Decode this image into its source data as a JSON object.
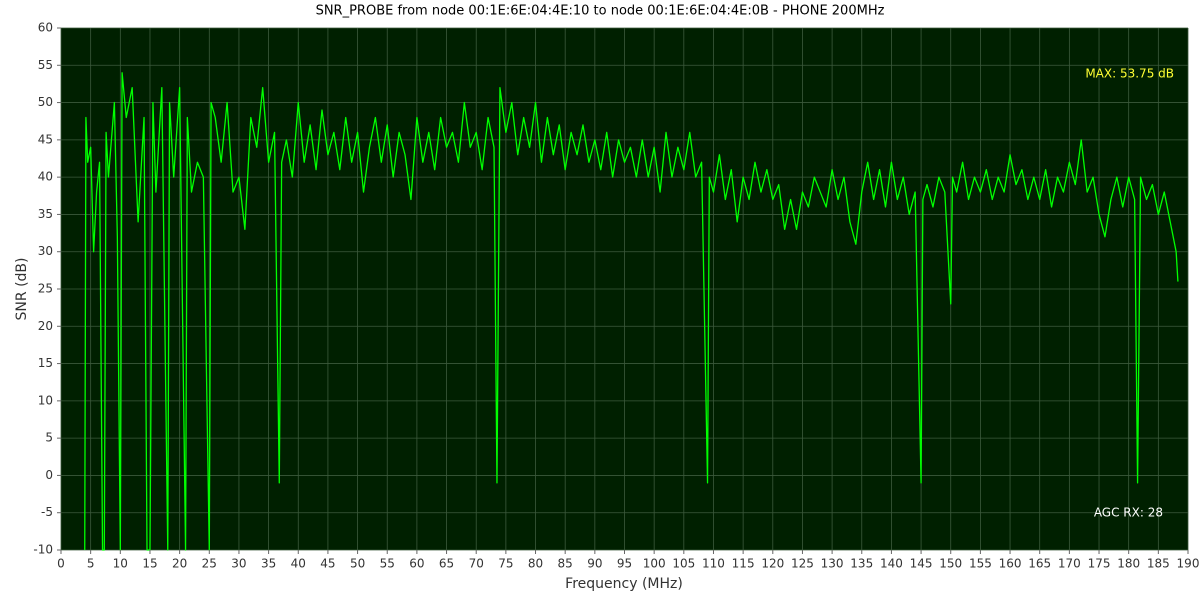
{
  "chart_data": {
    "type": "line",
    "title": "SNR_PROBE from node 00:1E:6E:04:4E:10 to node 00:1E:6E:04:4E:0B - PHONE 200MHz",
    "xlabel": "Frequency (MHz)",
    "ylabel": "SNR (dB)",
    "annotations": [
      "MAX: 53.75 dB",
      "AGC RX: 28"
    ],
    "grid": true,
    "xlim": [
      0,
      190
    ],
    "ylim": [
      -10,
      60
    ],
    "xticks": [
      0,
      5,
      10,
      15,
      20,
      25,
      30,
      35,
      40,
      45,
      50,
      55,
      60,
      65,
      70,
      75,
      80,
      85,
      90,
      95,
      100,
      105,
      110,
      115,
      120,
      125,
      130,
      135,
      140,
      145,
      150,
      155,
      160,
      165,
      170,
      175,
      180,
      185,
      190
    ],
    "yticks": [
      -10,
      -5,
      0,
      5,
      10,
      15,
      20,
      25,
      30,
      35,
      40,
      45,
      50,
      55,
      60
    ],
    "series": [
      {
        "name": "SNR",
        "color": "#00ff00",
        "x": [
          4,
          4.2,
          4.5,
          5,
          5.5,
          6,
          6.5,
          7,
          7.3,
          7.6,
          8,
          9,
          9.5,
          10,
          10.3,
          11,
          12,
          13,
          14,
          14.5,
          15,
          15.5,
          16,
          17,
          18,
          18.3,
          19,
          20,
          21,
          21.3,
          22,
          23,
          24,
          25,
          25.3,
          26,
          27,
          28,
          29,
          30,
          31,
          32,
          33,
          34,
          35,
          36,
          36.8,
          37.2,
          38,
          39,
          40,
          41,
          42,
          43,
          44,
          45,
          46,
          47,
          48,
          49,
          50,
          51,
          52,
          53,
          54,
          55,
          56,
          57,
          58,
          59,
          60,
          61,
          62,
          63,
          64,
          65,
          66,
          67,
          68,
          69,
          70,
          71,
          72,
          73,
          73.5,
          74,
          75,
          76,
          77,
          78,
          79,
          80,
          81,
          82,
          83,
          84,
          85,
          86,
          87,
          88,
          89,
          90,
          91,
          92,
          93,
          94,
          95,
          96,
          97,
          98,
          99,
          100,
          101,
          102,
          103,
          104,
          105,
          106,
          107,
          108,
          109,
          109.3,
          110,
          111,
          112,
          113,
          114,
          115,
          116,
          117,
          118,
          119,
          120,
          121,
          122,
          123,
          124,
          125,
          126,
          127,
          128,
          129,
          130,
          131,
          132,
          133,
          134,
          135,
          136,
          137,
          138,
          139,
          140,
          141,
          142,
          143,
          144,
          145,
          145.3,
          146,
          147,
          148,
          149,
          150,
          150.3,
          151,
          152,
          153,
          154,
          155,
          156,
          157,
          158,
          159,
          160,
          161,
          162,
          163,
          164,
          165,
          166,
          167,
          168,
          169,
          170,
          171,
          172,
          173,
          174,
          175,
          176,
          177,
          178,
          179,
          180,
          181,
          181.5,
          182,
          183,
          184,
          185,
          186,
          187,
          188,
          188.3
        ],
        "values": [
          -10,
          48,
          42,
          44,
          30,
          38,
          42,
          -10,
          -10,
          46,
          40,
          50,
          32,
          -10,
          54,
          48,
          52,
          34,
          48,
          -10,
          -10,
          50,
          38,
          52,
          -10,
          50,
          40,
          52,
          -10,
          48,
          38,
          42,
          40,
          -10,
          50,
          48,
          42,
          50,
          38,
          40,
          33,
          48,
          44,
          52,
          42,
          46,
          -1,
          42,
          45,
          40,
          50,
          42,
          47,
          41,
          49,
          43,
          46,
          41,
          48,
          42,
          46,
          38,
          44,
          48,
          42,
          47,
          40,
          46,
          43,
          37,
          48,
          42,
          46,
          41,
          48,
          44,
          46,
          42,
          50,
          44,
          46,
          41,
          48,
          44,
          -1,
          52,
          46,
          50,
          43,
          48,
          44,
          50,
          42,
          48,
          43,
          47,
          41,
          46,
          43,
          47,
          42,
          45,
          41,
          46,
          40,
          45,
          42,
          44,
          40,
          45,
          40,
          44,
          38,
          46,
          40,
          44,
          41,
          46,
          40,
          42,
          -1,
          40,
          38,
          43,
          37,
          41,
          34,
          40,
          37,
          42,
          38,
          41,
          37,
          39,
          33,
          37,
          33,
          38,
          36,
          40,
          38,
          36,
          41,
          37,
          40,
          34,
          31,
          38,
          42,
          37,
          41,
          36,
          42,
          37,
          40,
          35,
          38,
          -1,
          37,
          39,
          36,
          40,
          38,
          23,
          40,
          38,
          42,
          37,
          40,
          38,
          41,
          37,
          40,
          38,
          43,
          39,
          41,
          37,
          40,
          37,
          41,
          36,
          40,
          38,
          42,
          39,
          45,
          38,
          40,
          35,
          32,
          37,
          40,
          36,
          40,
          37,
          -1,
          40,
          37,
          39,
          35,
          38,
          34,
          30,
          26
        ]
      }
    ]
  }
}
